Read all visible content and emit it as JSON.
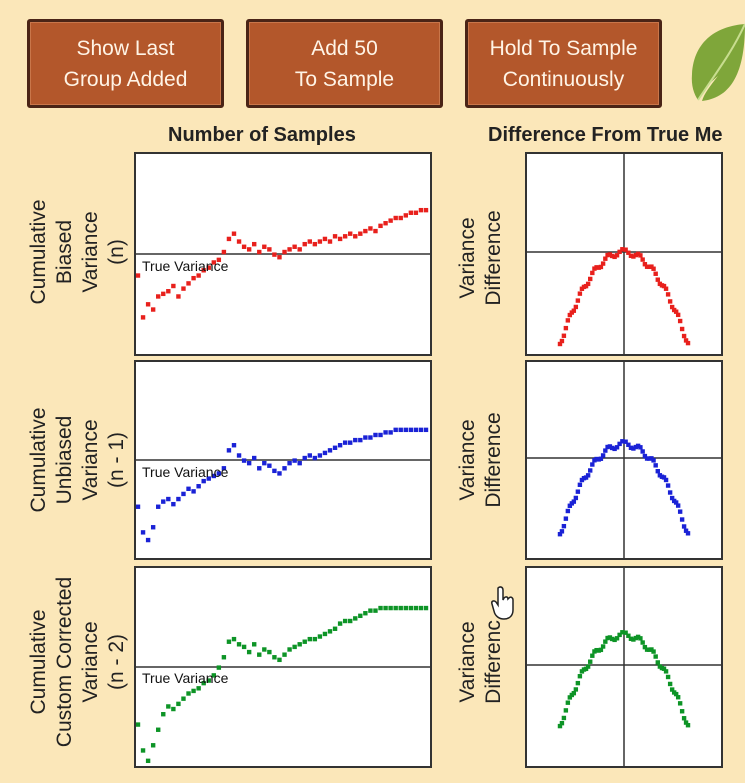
{
  "buttons": [
    {
      "label": "Show Last\nGroup Added"
    },
    {
      "label": "Add  50\nTo Sample"
    },
    {
      "label": "Hold To Sample\nContinuously"
    }
  ],
  "columns": {
    "left_title": "Number of Samples",
    "right_title": "Difference From True Me"
  },
  "rows": [
    {
      "label": "Cumulative\nBiased\nVariance\n(n)",
      "right_label": "Variance\nDifference",
      "true_variance_label": "True Variance",
      "color": "#e8201c",
      "series": [
        [
          0,
          60
        ],
        [
          1,
          28
        ],
        [
          2,
          38
        ],
        [
          3,
          34
        ],
        [
          4,
          44
        ],
        [
          5,
          46
        ],
        [
          6,
          48
        ],
        [
          7,
          52
        ],
        [
          8,
          44
        ],
        [
          9,
          50
        ],
        [
          10,
          54
        ],
        [
          11,
          58
        ],
        [
          12,
          60
        ],
        [
          13,
          64
        ],
        [
          14,
          66
        ],
        [
          15,
          70
        ],
        [
          16,
          72
        ],
        [
          17,
          78
        ],
        [
          18,
          88
        ],
        [
          19,
          92
        ],
        [
          20,
          86
        ],
        [
          21,
          82
        ],
        [
          22,
          80
        ],
        [
          23,
          84
        ],
        [
          24,
          78
        ],
        [
          25,
          82
        ],
        [
          26,
          80
        ],
        [
          27,
          76
        ],
        [
          28,
          74
        ],
        [
          29,
          78
        ],
        [
          30,
          80
        ],
        [
          31,
          82
        ],
        [
          32,
          80
        ],
        [
          33,
          84
        ],
        [
          34,
          86
        ],
        [
          35,
          84
        ],
        [
          36,
          86
        ],
        [
          37,
          88
        ],
        [
          38,
          86
        ],
        [
          39,
          90
        ],
        [
          40,
          88
        ],
        [
          41,
          90
        ],
        [
          42,
          92
        ],
        [
          43,
          90
        ],
        [
          44,
          92
        ],
        [
          45,
          94
        ],
        [
          46,
          96
        ],
        [
          47,
          94
        ],
        [
          48,
          98
        ],
        [
          49,
          100
        ],
        [
          50,
          102
        ],
        [
          51,
          104
        ],
        [
          52,
          104
        ],
        [
          53,
          106
        ],
        [
          54,
          108
        ],
        [
          55,
          108
        ],
        [
          56,
          110
        ],
        [
          57,
          110
        ]
      ]
    },
    {
      "label": "Cumulative\nUnbiased\nVariance\n(n - 1)",
      "right_label": "Variance\nDifference",
      "true_variance_label": "True Variance",
      "color": "#1a22d6",
      "series": [
        [
          0,
          40
        ],
        [
          1,
          20
        ],
        [
          2,
          14
        ],
        [
          3,
          24
        ],
        [
          4,
          40
        ],
        [
          5,
          44
        ],
        [
          6,
          46
        ],
        [
          7,
          42
        ],
        [
          8,
          46
        ],
        [
          9,
          50
        ],
        [
          10,
          54
        ],
        [
          11,
          52
        ],
        [
          12,
          56
        ],
        [
          13,
          60
        ],
        [
          14,
          62
        ],
        [
          15,
          64
        ],
        [
          16,
          66
        ],
        [
          17,
          70
        ],
        [
          18,
          84
        ],
        [
          19,
          88
        ],
        [
          20,
          80
        ],
        [
          21,
          76
        ],
        [
          22,
          74
        ],
        [
          23,
          78
        ],
        [
          24,
          70
        ],
        [
          25,
          74
        ],
        [
          26,
          72
        ],
        [
          27,
          68
        ],
        [
          28,
          66
        ],
        [
          29,
          70
        ],
        [
          30,
          74
        ],
        [
          31,
          76
        ],
        [
          32,
          74
        ],
        [
          33,
          78
        ],
        [
          34,
          80
        ],
        [
          35,
          78
        ],
        [
          36,
          80
        ],
        [
          37,
          82
        ],
        [
          38,
          84
        ],
        [
          39,
          86
        ],
        [
          40,
          88
        ],
        [
          41,
          90
        ],
        [
          42,
          90
        ],
        [
          43,
          92
        ],
        [
          44,
          92
        ],
        [
          45,
          94
        ],
        [
          46,
          94
        ],
        [
          47,
          96
        ],
        [
          48,
          96
        ],
        [
          49,
          98
        ],
        [
          50,
          98
        ],
        [
          51,
          100
        ],
        [
          52,
          100
        ],
        [
          53,
          100
        ],
        [
          54,
          100
        ],
        [
          55,
          100
        ],
        [
          56,
          100
        ],
        [
          57,
          100
        ]
      ]
    },
    {
      "label": "Cumulative\nCustom Corrected\nVariance\n(n - 2)",
      "right_label": "Variance\nDifferenc",
      "true_variance_label": "True Variance",
      "color": "#0d9426",
      "series": [
        [
          0,
          32
        ],
        [
          1,
          12
        ],
        [
          2,
          4
        ],
        [
          3,
          16
        ],
        [
          4,
          28
        ],
        [
          5,
          40
        ],
        [
          6,
          46
        ],
        [
          7,
          44
        ],
        [
          8,
          48
        ],
        [
          9,
          52
        ],
        [
          10,
          56
        ],
        [
          11,
          58
        ],
        [
          12,
          60
        ],
        [
          13,
          64
        ],
        [
          14,
          66
        ],
        [
          15,
          70
        ],
        [
          16,
          76
        ],
        [
          17,
          84
        ],
        [
          18,
          96
        ],
        [
          19,
          98
        ],
        [
          20,
          94
        ],
        [
          21,
          92
        ],
        [
          22,
          88
        ],
        [
          23,
          94
        ],
        [
          24,
          86
        ],
        [
          25,
          90
        ],
        [
          26,
          88
        ],
        [
          27,
          84
        ],
        [
          28,
          82
        ],
        [
          29,
          86
        ],
        [
          30,
          90
        ],
        [
          31,
          92
        ],
        [
          32,
          94
        ],
        [
          33,
          96
        ],
        [
          34,
          98
        ],
        [
          35,
          98
        ],
        [
          36,
          100
        ],
        [
          37,
          102
        ],
        [
          38,
          104
        ],
        [
          39,
          106
        ],
        [
          40,
          110
        ],
        [
          41,
          112
        ],
        [
          42,
          112
        ],
        [
          43,
          114
        ],
        [
          44,
          116
        ],
        [
          45,
          118
        ],
        [
          46,
          120
        ],
        [
          47,
          120
        ],
        [
          48,
          122
        ],
        [
          49,
          122
        ],
        [
          50,
          122
        ],
        [
          51,
          122
        ],
        [
          52,
          122
        ],
        [
          53,
          122
        ],
        [
          54,
          122
        ],
        [
          55,
          122
        ],
        [
          56,
          122
        ],
        [
          57,
          122
        ]
      ]
    }
  ],
  "icons": {
    "leaf": "leaf-icon",
    "cursor": "hand-pointer-icon"
  }
}
